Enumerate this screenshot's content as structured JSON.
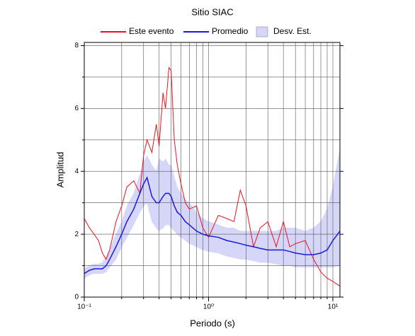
{
  "chart_data": {
    "type": "line",
    "title": "Sitio SIAC",
    "x_label": "Periodo (s)",
    "y_label": "Amplitud",
    "log_x": true,
    "grid": true,
    "legend": "top",
    "xlim": [
      0.1,
      11.4
    ],
    "xticks": [
      {
        "value": 0.1,
        "label": "10⁻¹"
      },
      {
        "value": 1,
        "label": "10⁰"
      },
      {
        "value": 10,
        "label": "10¹"
      }
    ],
    "x_minor_ticks": [
      0.2,
      0.3,
      0.4,
      0.5,
      0.6,
      0.7,
      0.8,
      0.9,
      2,
      3,
      4,
      5,
      6,
      7,
      8,
      9
    ],
    "ylim": [
      0,
      8.1
    ],
    "yticks": [
      0,
      2,
      4,
      6,
      8
    ],
    "y_minor_ticks": [
      1,
      3,
      5,
      7
    ],
    "x": [
      0.1,
      0.11,
      0.12,
      0.13,
      0.14,
      0.15,
      0.16,
      0.18,
      0.2,
      0.22,
      0.25,
      0.28,
      0.3,
      0.32,
      0.35,
      0.38,
      0.4,
      0.43,
      0.45,
      0.48,
      0.5,
      0.53,
      0.56,
      0.6,
      0.65,
      0.7,
      0.8,
      0.9,
      1.0,
      1.2,
      1.4,
      1.6,
      1.8,
      2.0,
      2.3,
      2.6,
      3.0,
      3.5,
      4.0,
      4.5,
      5,
      6,
      7,
      8,
      9,
      10,
      11.4
    ],
    "series": [
      {
        "name": "Este evento",
        "color": "#e8141c",
        "values": [
          2.5,
          2.2,
          2.0,
          1.8,
          1.4,
          1.2,
          1.5,
          2.4,
          2.9,
          3.5,
          3.7,
          3.3,
          4.5,
          5.0,
          4.6,
          5.5,
          4.8,
          6.5,
          6.0,
          7.3,
          7.2,
          5.0,
          4.2,
          3.6,
          3.0,
          2.8,
          2.9,
          2.2,
          1.9,
          2.6,
          2.5,
          2.4,
          3.4,
          2.9,
          1.6,
          2.2,
          2.4,
          1.6,
          2.4,
          1.6,
          1.7,
          1.8,
          1.2,
          0.8,
          0.6,
          0.5,
          0.35
        ]
      },
      {
        "name": "Promedio",
        "color": "#1a1adc",
        "values": [
          0.75,
          0.85,
          0.9,
          0.9,
          0.9,
          1.0,
          1.2,
          1.6,
          2.0,
          2.4,
          2.8,
          3.3,
          3.6,
          3.8,
          3.2,
          3.0,
          3.0,
          3.2,
          3.3,
          3.3,
          3.2,
          2.9,
          2.7,
          2.6,
          2.4,
          2.3,
          2.1,
          2.0,
          1.95,
          1.9,
          1.8,
          1.75,
          1.7,
          1.65,
          1.6,
          1.55,
          1.5,
          1.5,
          1.5,
          1.45,
          1.4,
          1.35,
          1.35,
          1.4,
          1.5,
          1.8,
          2.1
        ]
      },
      {
        "name": "Desv. Est.",
        "color": "#d6d6f8",
        "upper": [
          0.9,
          1.0,
          1.05,
          1.05,
          1.1,
          1.3,
          1.5,
          2.0,
          2.4,
          2.9,
          3.3,
          3.9,
          4.3,
          4.5,
          4.2,
          4.0,
          4.4,
          4.3,
          4.4,
          4.2,
          4.2,
          3.8,
          3.5,
          3.3,
          3.1,
          3.0,
          2.7,
          2.5,
          2.4,
          2.3,
          2.2,
          2.2,
          2.1,
          2.1,
          2.1,
          2.1,
          2.1,
          2.1,
          2.2,
          2.2,
          2.2,
          2.1,
          2.2,
          2.4,
          2.8,
          3.5,
          4.7
        ],
        "lower": [
          0.6,
          0.7,
          0.75,
          0.75,
          0.75,
          0.8,
          0.95,
          1.2,
          1.6,
          1.9,
          2.3,
          2.7,
          2.9,
          3.0,
          2.4,
          2.2,
          2.1,
          2.2,
          2.3,
          2.3,
          2.2,
          2.1,
          2.0,
          1.9,
          1.8,
          1.7,
          1.6,
          1.5,
          1.45,
          1.4,
          1.3,
          1.25,
          1.2,
          1.2,
          1.15,
          1.1,
          1.1,
          1.05,
          1.0,
          1.0,
          0.95,
          0.95,
          0.95,
          0.95,
          0.95,
          0.95,
          1.0
        ]
      }
    ]
  }
}
